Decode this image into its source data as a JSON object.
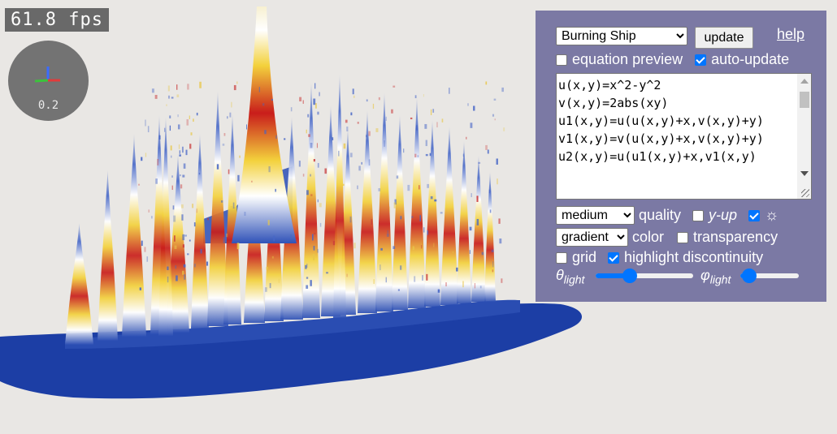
{
  "viewport": {
    "fps_text": "61.8 fps",
    "axis_scale": "0.2"
  },
  "panel": {
    "function_select": {
      "selected": "Burning Ship"
    },
    "update_label": "update",
    "help_label": "help",
    "equation_preview": {
      "label": "equation preview",
      "checked": false
    },
    "auto_update": {
      "label": "auto-update",
      "checked": true
    },
    "equation_text": "u(x,y)=x^2-y^2\nv(x,y)=2abs(xy)\nu1(x,y)=u(u(x,y)+x,v(x,y)+y)\nv1(x,y)=v(u(x,y)+x,v(x,y)+y)\nu2(x,y)=u(u1(x,y)+x,v1(x,y)",
    "quality": {
      "selected": "medium",
      "label": "quality"
    },
    "y_up": {
      "label": "y-up",
      "checked": false
    },
    "light_toggle": {
      "checked": true,
      "icon": "sun-icon",
      "glyph": "☼"
    },
    "color": {
      "selected": "gradient",
      "label": "color"
    },
    "transparency": {
      "label": "transparency",
      "checked": false
    },
    "grid": {
      "label": "grid",
      "checked": false
    },
    "highlight_discontinuity": {
      "label": "highlight discontinuity",
      "checked": true
    },
    "theta_light": {
      "symbol": "θ",
      "subscript": "light",
      "value": 0.35
    },
    "phi_light": {
      "symbol": "φ",
      "subscript": "light",
      "value": 0.15
    }
  },
  "colors": {
    "panel_bg": "#7b79a4",
    "accent": "#0075ff",
    "surface_blue": "#1c3ea5",
    "peak_red": "#c91d1b",
    "peak_yellow": "#f0d23a"
  }
}
